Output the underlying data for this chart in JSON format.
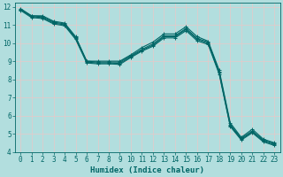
{
  "xlabel": "Humidex (Indice chaleur)",
  "background_color": "#b2dede",
  "grid_color": "#d8eeee",
  "line_color": "#006666",
  "xlim": [
    -0.5,
    23.5
  ],
  "ylim": [
    4,
    12.2
  ],
  "yticks": [
    4,
    5,
    6,
    7,
    8,
    9,
    10,
    11,
    12
  ],
  "xticks": [
    0,
    1,
    2,
    3,
    4,
    5,
    6,
    7,
    8,
    9,
    10,
    11,
    12,
    13,
    14,
    15,
    16,
    17,
    18,
    19,
    20,
    21,
    22,
    23
  ],
  "tick_fontsize": 5.5,
  "xlabel_fontsize": 6.5,
  "lines": [
    {
      "x": [
        0,
        1,
        2,
        3,
        4,
        5,
        6,
        7,
        8,
        9,
        10,
        11,
        12,
        13,
        14,
        15,
        16,
        17,
        18,
        19,
        20,
        21,
        22,
        23
      ],
      "y": [
        11.9,
        11.5,
        11.5,
        11.2,
        11.1,
        10.35,
        9.0,
        9.0,
        9.0,
        9.0,
        9.35,
        9.75,
        10.05,
        10.5,
        10.5,
        10.9,
        10.35,
        10.1,
        8.5,
        5.6,
        4.8,
        5.25,
        4.7,
        4.5
      ]
    },
    {
      "x": [
        0,
        1,
        2,
        3,
        4,
        5,
        6,
        7,
        8,
        9,
        10,
        11,
        12,
        13,
        14,
        15,
        16,
        17,
        18,
        19,
        20,
        21,
        22,
        23
      ],
      "y": [
        11.85,
        11.5,
        11.45,
        11.15,
        11.05,
        10.3,
        9.0,
        8.95,
        8.95,
        8.95,
        9.3,
        9.65,
        9.95,
        10.4,
        10.4,
        10.8,
        10.25,
        10.05,
        8.4,
        5.5,
        4.75,
        5.15,
        4.65,
        4.45
      ]
    },
    {
      "x": [
        0,
        1,
        2,
        3,
        4,
        5,
        6,
        7,
        8,
        9,
        10,
        11,
        12,
        13,
        14,
        15,
        16,
        17,
        18,
        19,
        20,
        21,
        22,
        23
      ],
      "y": [
        11.85,
        11.45,
        11.4,
        11.1,
        11.0,
        10.25,
        8.95,
        8.9,
        8.9,
        8.88,
        9.25,
        9.6,
        9.88,
        10.35,
        10.35,
        10.75,
        10.2,
        9.98,
        8.35,
        5.45,
        4.7,
        5.1,
        4.6,
        4.4
      ]
    },
    {
      "x": [
        0,
        1,
        2,
        3,
        4,
        5,
        6,
        7,
        8,
        9,
        10,
        11,
        12,
        13,
        14,
        15,
        16,
        17,
        18,
        19,
        20,
        21,
        22,
        23
      ],
      "y": [
        11.8,
        11.4,
        11.35,
        11.05,
        10.95,
        10.2,
        8.9,
        8.85,
        8.85,
        8.82,
        9.2,
        9.55,
        9.82,
        10.28,
        10.28,
        10.68,
        10.12,
        9.92,
        8.28,
        5.4,
        4.65,
        5.05,
        4.55,
        4.35
      ]
    }
  ]
}
